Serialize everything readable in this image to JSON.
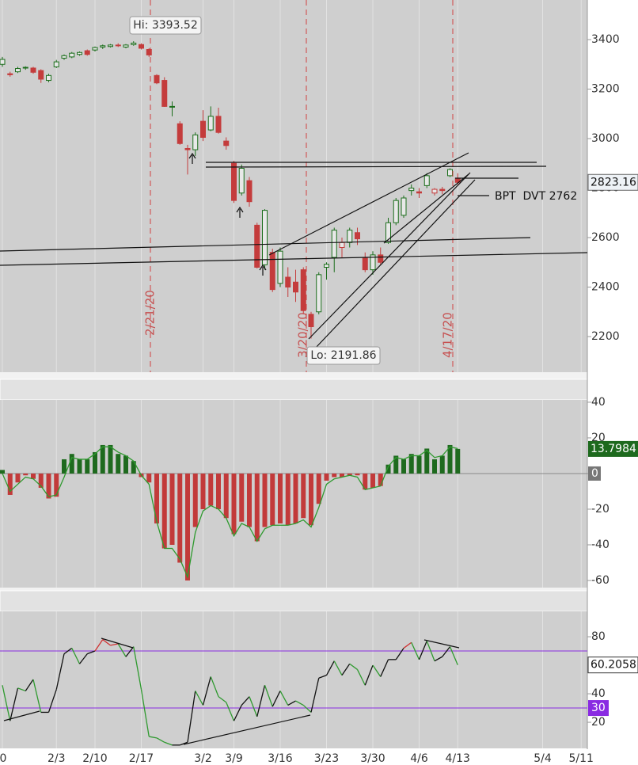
{
  "chart_data": [
    {
      "type": "candlestick",
      "ylim": [
        2056,
        3560
      ],
      "yticks": [
        2200,
        2400,
        2600,
        2800,
        3000,
        3200,
        3400
      ],
      "up_color": "#1b6e1b",
      "down_color": "#c43c3c",
      "open": [
        3300,
        3262,
        3270,
        3285,
        3285,
        3275,
        3235,
        3290,
        3325,
        3330,
        3340,
        3355,
        3358,
        3370,
        3372,
        3378,
        3370,
        3380,
        3380,
        3360,
        3255,
        3235,
        3130,
        3060,
        2960,
        2955,
        3070,
        3035,
        3090,
        2990,
        2900,
        2780,
        2830,
        2650,
        2490,
        2540,
        2415,
        2440,
        2420,
        2470,
        2290,
        2300,
        2480,
        2520,
        2560,
        2580,
        2620,
        2520,
        2470,
        2530,
        2580,
        2660,
        2690,
        2790,
        2785,
        2810,
        2780,
        2795,
        2850,
        2840,
        null,
        null,
        null,
        null,
        null,
        null,
        null,
        null,
        null,
        null,
        null,
        null,
        null,
        null,
        null,
        null
      ],
      "high": [
        3330,
        3270,
        3290,
        3292,
        3290,
        3280,
        3262,
        3318,
        3340,
        3350,
        3352,
        3360,
        3372,
        3380,
        3382,
        3385,
        3382,
        3393.52,
        3385,
        3365,
        3260,
        3248,
        3150,
        3070,
        2975,
        3025,
        3115,
        3130,
        3125,
        3005,
        2910,
        2895,
        2845,
        2660,
        2715,
        2555,
        2560,
        2480,
        2470,
        2480,
        2300,
        2460,
        2500,
        2640,
        2600,
        2640,
        2640,
        2540,
        2545,
        2560,
        2680,
        2760,
        2770,
        2815,
        2800,
        2860,
        2800,
        2805,
        2880,
        2860,
        null,
        null,
        null,
        null,
        null,
        null,
        null,
        null,
        null,
        null,
        null,
        null,
        null,
        null,
        null,
        null
      ],
      "low": [
        3290,
        3250,
        3265,
        3278,
        3262,
        3225,
        3228,
        3285,
        3318,
        3325,
        3335,
        3335,
        3352,
        3362,
        3368,
        3370,
        3365,
        3375,
        3360,
        3330,
        3220,
        3128,
        3090,
        2975,
        2855,
        2930,
        2990,
        3030,
        3020,
        2955,
        2740,
        2770,
        2725,
        2475,
        2470,
        2380,
        2400,
        2360,
        2340,
        2290,
        2191.86,
        2290,
        2430,
        2460,
        2520,
        2560,
        2570,
        2460,
        2450,
        2490,
        2575,
        2650,
        2680,
        2770,
        2760,
        2800,
        2770,
        2775,
        2845,
        2815,
        null,
        null,
        null,
        null,
        null,
        null,
        null,
        null,
        null,
        null,
        null,
        null,
        null,
        null,
        null,
        null
      ],
      "close": [
        3320,
        3258,
        3283,
        3288,
        3268,
        3240,
        3255,
        3310,
        3335,
        3345,
        3348,
        3340,
        3368,
        3375,
        3378,
        3375,
        3378,
        3386,
        3365,
        3338,
        3225,
        3130,
        3130,
        2980,
        2955,
        3015,
        3005,
        3090,
        3025,
        2972,
        2750,
        2880,
        2745,
        2480,
        2710,
        2390,
        2545,
        2400,
        2380,
        2305,
        2240,
        2450,
        2492,
        2630,
        2580,
        2630,
        2595,
        2470,
        2530,
        2500,
        2660,
        2750,
        2760,
        2800,
        2780,
        2850,
        2795,
        2790,
        2875,
        2823.16,
        null,
        null,
        null,
        null,
        null,
        null,
        null,
        null,
        null,
        null,
        null,
        null,
        null,
        null,
        null,
        null
      ],
      "high_label": "Hi: 3393.52",
      "low_label": "Lo: 2191.86",
      "note": "BPT  DVT 2762",
      "event_lines": [
        "2/21/20",
        "3/20/20",
        "4/17/20"
      ]
    },
    {
      "type": "histogram",
      "ylim": [
        -64,
        41.3
      ],
      "yticks": [
        -60,
        -40,
        -20,
        0,
        20,
        40
      ],
      "pos_color": "#1e6a1e",
      "neg_color": "#c23a3a",
      "signal_color": "#2f9a2f",
      "values": [
        2,
        -12,
        -5,
        -1,
        -3,
        -8,
        -14,
        -13,
        8,
        11,
        8,
        8,
        12,
        16,
        16,
        11,
        10,
        7,
        -2,
        -5,
        -28,
        -42,
        -40,
        -50,
        -60,
        -30,
        -20,
        -18,
        -20,
        -25,
        -34,
        -27,
        -30,
        -38,
        -30,
        -29,
        -28,
        -29,
        -28,
        -25,
        -29,
        -17,
        -4,
        -2,
        -2,
        -1,
        -1,
        -9,
        -8,
        -7,
        5,
        10,
        8,
        11,
        10,
        14,
        8,
        10,
        16,
        13.7984,
        null,
        null,
        null,
        null,
        null,
        null,
        null,
        null,
        null,
        null,
        null,
        null,
        null,
        null,
        null,
        null
      ],
      "signal": [
        0,
        -10,
        -6,
        -2,
        -3,
        -7,
        -13,
        -12,
        -2,
        9,
        8,
        8,
        11,
        15,
        15,
        12,
        10,
        7,
        -1,
        -6,
        -27,
        -42,
        -42,
        -48,
        -58,
        -33,
        -21,
        -18,
        -20,
        -25,
        -35,
        -28,
        -30,
        -38,
        -31,
        -29,
        -29,
        -29,
        -28,
        -26,
        -30,
        -19,
        -6,
        -3,
        -2,
        -1,
        -2,
        -9,
        -8,
        -7,
        4,
        9,
        8,
        10,
        10,
        13,
        9,
        10,
        15,
        14,
        null,
        null,
        null,
        null,
        null,
        null,
        null,
        null,
        null,
        null,
        null,
        null,
        null,
        null,
        null,
        null
      ]
    },
    {
      "type": "line",
      "ylim": [
        1.7,
        97.8
      ],
      "yticks": [
        20,
        40,
        80
      ],
      "levels": [
        30,
        70
      ],
      "level_color": "#8a2be2",
      "up_color": "#111111",
      "down_color": "#2f9a2f",
      "hot_color": "#d03030",
      "values": [
        46,
        21,
        44,
        42,
        50,
        27,
        27,
        43,
        68,
        72,
        61,
        68,
        70,
        78,
        74,
        75,
        66,
        73,
        43,
        10,
        9,
        6,
        4,
        4,
        6,
        42,
        32,
        52,
        38,
        34,
        21,
        32,
        38,
        24,
        46,
        31,
        42,
        32,
        35,
        32,
        27,
        51,
        53,
        63,
        53,
        61,
        57,
        46,
        60,
        52,
        64,
        64,
        72,
        76,
        64,
        77,
        63,
        66,
        73,
        60.2058,
        null,
        null,
        null,
        null,
        null,
        null,
        null,
        null,
        null,
        null,
        null,
        null,
        null,
        null,
        null,
        null
      ],
      "categories": [
        "0",
        null,
        null,
        null,
        null,
        null,
        null,
        "2/3",
        null,
        null,
        null,
        null,
        "2/10",
        null,
        null,
        null,
        null,
        null,
        "2/17",
        null,
        null,
        null,
        null,
        null,
        null,
        null,
        "3/2",
        null,
        null,
        null,
        "3/9",
        null,
        null,
        null,
        null,
        null,
        "3/16",
        null,
        null,
        null,
        null,
        null,
        "3/23",
        null,
        null,
        null,
        null,
        null,
        "3/30",
        null,
        null,
        null,
        null,
        null,
        "4/6",
        null,
        null,
        null,
        null,
        "4/13",
        null,
        null,
        null,
        null,
        null,
        null,
        null,
        null,
        null,
        null,
        "5/4",
        null,
        null,
        null,
        null,
        "5/11"
      ]
    }
  ]
}
